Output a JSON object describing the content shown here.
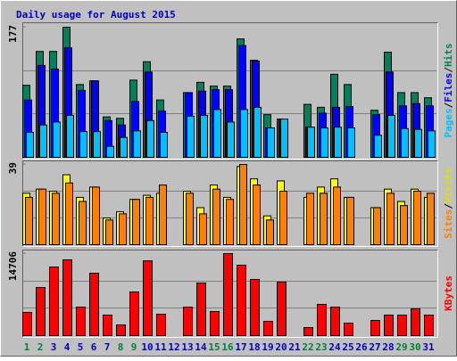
{
  "chart_data": [
    {
      "type": "bar",
      "title": "Daily usage for August 2015",
      "legend_separator": "/",
      "ylim": [
        0,
        177
      ],
      "yticks": [
        177
      ],
      "series": [
        {
          "name": "Hits",
          "color": "#00805c",
          "values": [
            98,
            144,
            144,
            177,
            99,
            104,
            55,
            53,
            105,
            130,
            78,
            null,
            88,
            102,
            97,
            97,
            161,
            132,
            58,
            52,
            null,
            72,
            68,
            113,
            99,
            null,
            64,
            143,
            88,
            88,
            81
          ]
        },
        {
          "name": "Files",
          "color": "#0000ff",
          "values": [
            78,
            125,
            120,
            149,
            91,
            104,
            50,
            44,
            76,
            116,
            63,
            null,
            88,
            90,
            92,
            92,
            152,
            131,
            40,
            52,
            null,
            41,
            60,
            68,
            69,
            null,
            58,
            116,
            70,
            73,
            70
          ]
        },
        {
          "name": "Pages",
          "color": "#00c0ff",
          "values": [
            34,
            44,
            48,
            57,
            35,
            35,
            15,
            27,
            36,
            50,
            34,
            null,
            56,
            57,
            65,
            48,
            65,
            68,
            40,
            52,
            null,
            41,
            40,
            41,
            40,
            null,
            30,
            57,
            39,
            38,
            36
          ]
        }
      ]
    },
    {
      "type": "bar",
      "legend_separator": "/",
      "ylim": [
        0,
        39
      ],
      "yticks": [
        39
      ],
      "series": [
        {
          "name": "Visits",
          "color": "#ffff00",
          "values": [
            25,
            27,
            26,
            34,
            23,
            28,
            13,
            16,
            22,
            24,
            25,
            null,
            26,
            18,
            29,
            23,
            38,
            32,
            14,
            31,
            null,
            23,
            28,
            32,
            23,
            null,
            18,
            27,
            21,
            27,
            23
          ]
        },
        {
          "name": "Sites",
          "color": "#ff8000",
          "values": [
            23,
            27,
            25,
            30,
            21,
            28,
            12,
            15,
            22,
            23,
            29,
            null,
            25,
            15,
            27,
            22,
            39,
            29,
            12,
            26,
            null,
            25,
            25,
            28,
            23,
            null,
            18,
            25,
            19,
            26,
            25
          ]
        }
      ]
    },
    {
      "type": "bar",
      "ylim": [
        0,
        14706
      ],
      "yticks": [
        14706
      ],
      "categories": [
        "1",
        "2",
        "3",
        "4",
        "5",
        "6",
        "7",
        "8",
        "9",
        "10",
        "11",
        "12",
        "13",
        "14",
        "15",
        "16",
        "17",
        "18",
        "19",
        "20",
        "21",
        "22",
        "23",
        "24",
        "25",
        "26",
        "27",
        "28",
        "29",
        "30",
        "31"
      ],
      "category_colors": [
        "#008040",
        "#008040",
        "#0000c0",
        "#0000c0",
        "#0000c0",
        "#0000c0",
        "#0000c0",
        "#008040",
        "#008040",
        "#0000c0",
        "#0000c0",
        "#0000c0",
        "#0000c0",
        "#0000c0",
        "#008040",
        "#008040",
        "#0000c0",
        "#0000c0",
        "#0000c0",
        "#0000c0",
        "#0000c0",
        "#008040",
        "#008040",
        "#0000c0",
        "#0000c0",
        "#0000c0",
        "#0000c0",
        "#0000c0",
        "#008040",
        "#008040",
        "#0000c0"
      ],
      "series": [
        {
          "name": "KBytes",
          "color": "#ff0000",
          "values": [
            4160,
            8630,
            12300,
            13590,
            5110,
            11190,
            3680,
            1920,
            7830,
            13400,
            3840,
            null,
            5110,
            9430,
            4320,
            14706,
            12630,
            10070,
            2560,
            9590,
            null,
            1440,
            5600,
            5110,
            2240,
            null,
            2720,
            3680,
            3680,
            4800,
            3680
          ]
        }
      ]
    }
  ]
}
